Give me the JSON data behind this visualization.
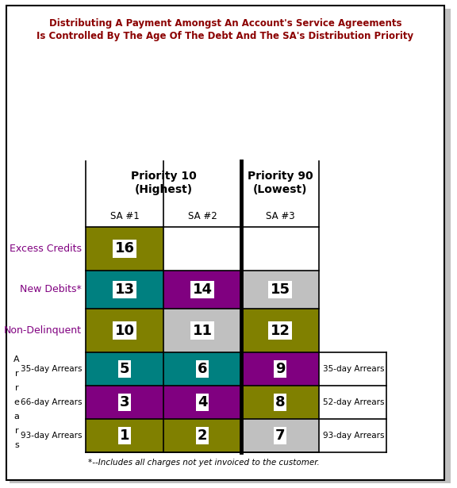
{
  "title_line1": "Distributing A Payment Amongst An Account's Service Agreements",
  "title_line2": "Is Controlled By The Age Of The Debt And The SA's Distribution Priority",
  "title_color": "#8B0000",
  "priority_labels": [
    "Priority 10\n(Highest)",
    "Priority 90\n(Lowest)"
  ],
  "sa_labels": [
    "SA #1",
    "SA #2",
    "SA #3"
  ],
  "row_labels_left": [
    "Excess Credits",
    "New Debits*",
    "Non-Delinquent",
    "35-day Arrears",
    "66-day Arrears",
    "93-day Arrears"
  ],
  "row_labels_right": [
    "35-day Arrears",
    "52-day Arrears",
    "93-day Arrears"
  ],
  "arrears_letter": [
    "A",
    "r",
    "r",
    "e",
    "a",
    "r",
    "s"
  ],
  "footnote": "*--Includes all charges not yet invoiced to the customer.",
  "cells_numbers": [
    [
      16,
      null,
      null
    ],
    [
      13,
      14,
      15
    ],
    [
      10,
      11,
      12
    ],
    [
      5,
      6,
      9
    ],
    [
      3,
      4,
      8
    ],
    [
      1,
      2,
      7
    ]
  ],
  "cells_colors": [
    [
      "#808000",
      null,
      null
    ],
    [
      "#008080",
      "#800080",
      "#C0C0C0"
    ],
    [
      "#808000",
      "#C0C0C0",
      "#808000"
    ],
    [
      "#008080",
      "#008080",
      "#800080"
    ],
    [
      "#800080",
      "#800080",
      "#808000"
    ],
    [
      "#808000",
      "#808000",
      "#C0C0C0"
    ]
  ],
  "bg_color": "#FFFFFF",
  "label_color_top3": "#800080",
  "label_color_arrears": "#000000"
}
